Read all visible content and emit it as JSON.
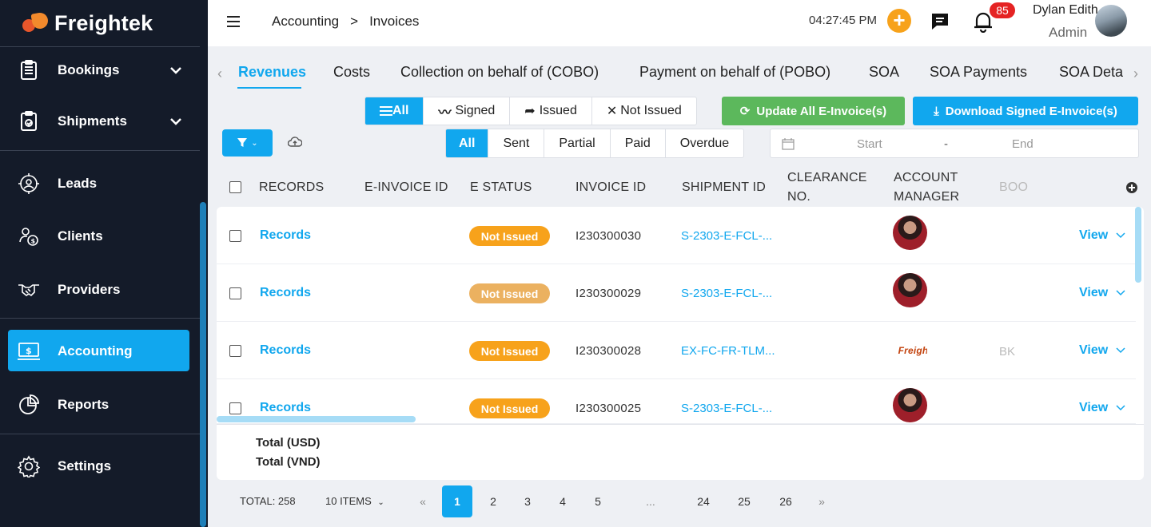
{
  "app": {
    "name": "Freightek"
  },
  "sidebar": {
    "items": [
      {
        "label": "Bookings",
        "icon": "clipboard-icon",
        "expandable": true
      },
      {
        "label": "Shipments",
        "icon": "shipment-clipboard-icon",
        "expandable": true
      },
      {
        "label": "Leads",
        "icon": "target-user-icon"
      },
      {
        "label": "Clients",
        "icon": "client-money-icon"
      },
      {
        "label": "Providers",
        "icon": "handshake-icon"
      },
      {
        "label": "Accounting",
        "icon": "money-screen-icon",
        "active": true
      },
      {
        "label": "Reports",
        "icon": "pie-chart-icon"
      },
      {
        "label": "Settings",
        "icon": "gear-icon"
      }
    ]
  },
  "header": {
    "breadcrumb": [
      "Accounting",
      ">",
      "Invoices"
    ],
    "clock": "04:27:45 PM",
    "notification_count": "85",
    "user_name": "Dylan Edith",
    "user_role": "Admin"
  },
  "tabs": [
    "Revenues",
    "Costs",
    "Collection on behalf of (COBO)",
    "Payment on behalf of (POBO)",
    "SOA",
    "SOA Payments",
    "SOA Deta"
  ],
  "active_tab": "Revenues",
  "sign_filter": [
    "All",
    "Signed",
    "Issued",
    "Not Issued"
  ],
  "payment_filter": [
    "All",
    "Sent",
    "Partial",
    "Paid",
    "Overdue"
  ],
  "actions": {
    "update": "Update All E-Invoice(s)",
    "download": "Download Signed E-Invoice(s)"
  },
  "date_range": {
    "start": "Start",
    "separator": "-",
    "end": "End"
  },
  "table": {
    "headers": {
      "records": "RECORDS",
      "einvoice": "E-INVOICE ID",
      "estatus": "E STATUS",
      "invoice": "INVOICE ID",
      "shipment": "SHIPMENT ID",
      "clearance_1": "CLEARANCE",
      "clearance_2": "NO.",
      "manager_1": "ACCOUNT",
      "manager_2": "MANAGER",
      "booking": "BOO"
    },
    "rows": [
      {
        "records": "Records",
        "status": "Not Issued",
        "status_color": "#f7a21b",
        "invoice_id": "I230300030",
        "shipment_id": "S-2303-E-FCL-...",
        "manager": "person",
        "booking": "",
        "action": "View"
      },
      {
        "records": "Records",
        "status": "Not Issued",
        "status_color": "#ebb160",
        "invoice_id": "I230300029",
        "shipment_id": "S-2303-E-FCL-...",
        "manager": "person",
        "booking": "",
        "action": "View"
      },
      {
        "records": "Records",
        "status": "Not Issued",
        "status_color": "#f7a21b",
        "invoice_id": "I230300028",
        "shipment_id": "EX-FC-FR-TLM...",
        "manager": "logo",
        "booking": "BK",
        "action": "View"
      },
      {
        "records": "Records",
        "status": "Not Issued",
        "status_color": "#f7a21b",
        "invoice_id": "I230300025",
        "shipment_id": "S-2303-E-FCL-...",
        "manager": "person",
        "booking": "",
        "action": "View"
      }
    ],
    "manager_logo_text": "Freightek",
    "totals": [
      "Total (USD)",
      "Total (VND)"
    ]
  },
  "pagination": {
    "total": "TOTAL: 258",
    "per_page": "10 ITEMS",
    "prev": "«",
    "next": "»",
    "pages": [
      "1",
      "2",
      "3",
      "4",
      "5",
      "...",
      "24",
      "25",
      "26"
    ],
    "current": "1"
  },
  "colors": {
    "accent": "#11a7ee",
    "sidebar": "#141b29",
    "green": "#5cb85c",
    "warning": "#f7a21b"
  }
}
